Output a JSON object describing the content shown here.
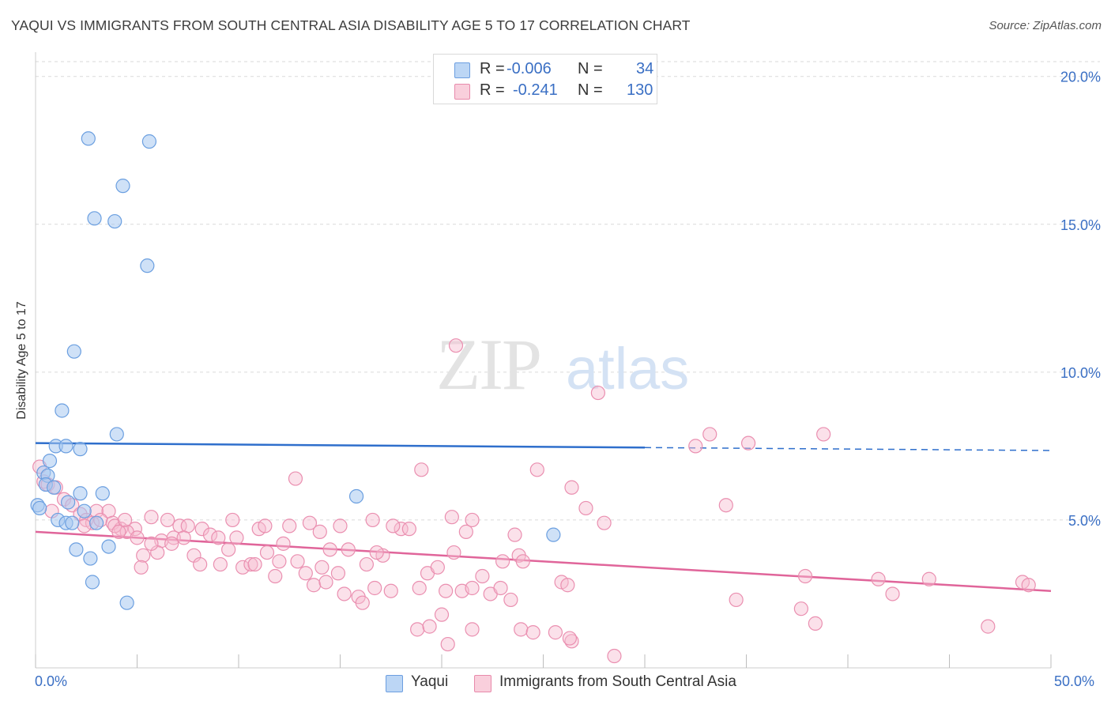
{
  "header": {
    "title": "YAQUI VS IMMIGRANTS FROM SOUTH CENTRAL ASIA DISABILITY AGE 5 TO 17 CORRELATION CHART",
    "source": "Source: ZipAtlas.com"
  },
  "watermark": {
    "zip": "ZIP",
    "atlas": "atlas"
  },
  "legend": {
    "rows": [
      {
        "r_label": "R =",
        "r_value": "-0.006",
        "n_label": "N =",
        "n_value": "34",
        "color": "#a9c8f0",
        "border": "#6c9ee0"
      },
      {
        "r_label": "R =",
        "r_value": "-0.241",
        "n_label": "N =",
        "n_value": "130",
        "color": "#f7bcd0",
        "border": "#e88aab"
      }
    ]
  },
  "bottom_legend": {
    "yaqui": "Yaqui",
    "immigrants": "Immigrants from South Central Asia"
  },
  "colors": {
    "yaqui_fill": "rgba(168,200,240,0.55)",
    "yaqui_stroke": "#6b9fe0",
    "yaqui_line": "#2f6fcc",
    "imm_fill": "rgba(247,188,208,0.45)",
    "imm_stroke": "#ea8fb0",
    "imm_line": "#e0659a",
    "grid": "#dadada",
    "tick_text": "#3a6fc4"
  },
  "chart_data": {
    "type": "scatter",
    "title": "YAQUI VS IMMIGRANTS FROM SOUTH CENTRAL ASIA DISABILITY AGE 5 TO 17 CORRELATION CHART",
    "xlabel": "",
    "ylabel": "Disability Age 5 to 17",
    "xlim": [
      0,
      50
    ],
    "ylim": [
      0,
      20.5
    ],
    "x_tick_labels": [
      "0.0%",
      "50.0%"
    ],
    "y_ticks": [
      5,
      10,
      15,
      20
    ],
    "y_tick_labels": [
      "5.0%",
      "10.0%",
      "15.0%",
      "20.0%"
    ],
    "grid": "horizontal dashed",
    "series": [
      {
        "name": "Yaqui",
        "R": -0.006,
        "N": 34,
        "trend": {
          "x0": 0,
          "y0": 7.6,
          "x1": 30,
          "y1": 7.45,
          "dashed_to": 50,
          "dashed_y": 7.35
        },
        "points": [
          [
            2.6,
            17.9
          ],
          [
            5.6,
            17.8
          ],
          [
            4.3,
            16.3
          ],
          [
            2.9,
            15.2
          ],
          [
            3.9,
            15.1
          ],
          [
            5.5,
            13.6
          ],
          [
            1.9,
            10.7
          ],
          [
            1.3,
            8.7
          ],
          [
            4.0,
            7.9
          ],
          [
            1.0,
            7.5
          ],
          [
            1.5,
            7.5
          ],
          [
            2.2,
            7.4
          ],
          [
            0.7,
            7.0
          ],
          [
            0.4,
            6.6
          ],
          [
            0.6,
            6.5
          ],
          [
            0.5,
            6.2
          ],
          [
            0.9,
            6.1
          ],
          [
            2.2,
            5.9
          ],
          [
            3.3,
            5.9
          ],
          [
            15.8,
            5.8
          ],
          [
            1.6,
            5.6
          ],
          [
            0.1,
            5.5
          ],
          [
            0.2,
            5.4
          ],
          [
            2.4,
            5.3
          ],
          [
            1.1,
            5.0
          ],
          [
            1.5,
            4.9
          ],
          [
            1.8,
            4.9
          ],
          [
            3.0,
            4.9
          ],
          [
            25.5,
            4.5
          ],
          [
            3.6,
            4.1
          ],
          [
            2.0,
            4.0
          ],
          [
            2.7,
            3.7
          ],
          [
            2.8,
            2.9
          ],
          [
            4.5,
            2.2
          ]
        ]
      },
      {
        "name": "Immigrants from South Central Asia",
        "R": -0.241,
        "N": 130,
        "trend": {
          "x0": 0,
          "y0": 4.6,
          "x1": 50,
          "y1": 2.6
        },
        "points": [
          [
            20.7,
            10.9
          ],
          [
            27.7,
            9.3
          ],
          [
            33.2,
            7.9
          ],
          [
            38.8,
            7.9
          ],
          [
            32.5,
            7.5
          ],
          [
            35.1,
            7.6
          ],
          [
            19.0,
            6.7
          ],
          [
            24.7,
            6.7
          ],
          [
            12.8,
            6.4
          ],
          [
            0.2,
            6.8
          ],
          [
            0.4,
            6.3
          ],
          [
            0.6,
            6.2
          ],
          [
            1.0,
            6.1
          ],
          [
            1.4,
            5.7
          ],
          [
            1.8,
            5.5
          ],
          [
            0.8,
            5.3
          ],
          [
            2.2,
            5.2
          ],
          [
            3.0,
            5.3
          ],
          [
            3.6,
            5.3
          ],
          [
            2.5,
            5.0
          ],
          [
            2.8,
            4.9
          ],
          [
            3.2,
            5.0
          ],
          [
            3.8,
            4.9
          ],
          [
            4.2,
            4.7
          ],
          [
            4.9,
            4.7
          ],
          [
            5.7,
            5.1
          ],
          [
            6.5,
            5.0
          ],
          [
            7.1,
            4.8
          ],
          [
            7.5,
            4.8
          ],
          [
            6.2,
            4.3
          ],
          [
            4.5,
            4.6
          ],
          [
            5.0,
            4.4
          ],
          [
            5.3,
            3.8
          ],
          [
            5.2,
            3.4
          ],
          [
            6.0,
            3.9
          ],
          [
            6.8,
            4.4
          ],
          [
            7.3,
            4.4
          ],
          [
            7.8,
            3.8
          ],
          [
            8.2,
            4.7
          ],
          [
            8.6,
            4.5
          ],
          [
            9.1,
            3.5
          ],
          [
            8.1,
            3.5
          ],
          [
            9.5,
            4.0
          ],
          [
            9.9,
            4.4
          ],
          [
            10.2,
            3.4
          ],
          [
            9.7,
            5.0
          ],
          [
            10.6,
            3.5
          ],
          [
            11.0,
            4.7
          ],
          [
            11.4,
            3.9
          ],
          [
            11.8,
            3.1
          ],
          [
            12.2,
            4.2
          ],
          [
            12.5,
            4.8
          ],
          [
            12.9,
            3.6
          ],
          [
            13.3,
            3.2
          ],
          [
            13.7,
            2.8
          ],
          [
            14.1,
            3.4
          ],
          [
            14.5,
            4.0
          ],
          [
            14.9,
            3.2
          ],
          [
            15.4,
            4.0
          ],
          [
            15.9,
            2.4
          ],
          [
            16.3,
            3.5
          ],
          [
            16.7,
            2.7
          ],
          [
            17.1,
            3.8
          ],
          [
            17.5,
            2.6
          ],
          [
            18.0,
            4.7
          ],
          [
            18.4,
            4.7
          ],
          [
            18.9,
            2.7
          ],
          [
            19.3,
            3.2
          ],
          [
            19.8,
            3.4
          ],
          [
            20.2,
            2.6
          ],
          [
            20.6,
            3.9
          ],
          [
            21.0,
            2.6
          ],
          [
            21.5,
            2.7
          ],
          [
            22.0,
            3.1
          ],
          [
            22.4,
            2.5
          ],
          [
            22.9,
            2.7
          ],
          [
            23.4,
            2.3
          ],
          [
            23.8,
            3.8
          ],
          [
            15.0,
            4.8
          ],
          [
            13.5,
            4.9
          ],
          [
            14.0,
            4.6
          ],
          [
            20.5,
            5.1
          ],
          [
            17.6,
            4.8
          ],
          [
            16.6,
            5.0
          ],
          [
            21.5,
            5.0
          ],
          [
            23.6,
            4.5
          ],
          [
            21.2,
            4.6
          ],
          [
            26.4,
            6.1
          ],
          [
            27.1,
            5.4
          ],
          [
            28.0,
            4.9
          ],
          [
            23.0,
            3.6
          ],
          [
            24.0,
            3.6
          ],
          [
            25.9,
            2.9
          ],
          [
            26.2,
            2.8
          ],
          [
            18.8,
            1.3
          ],
          [
            19.4,
            1.4
          ],
          [
            21.5,
            1.3
          ],
          [
            23.9,
            1.3
          ],
          [
            24.5,
            1.2
          ],
          [
            25.6,
            1.2
          ],
          [
            20.3,
            0.8
          ],
          [
            26.4,
            0.9
          ],
          [
            28.5,
            0.4
          ],
          [
            34.5,
            2.3
          ],
          [
            41.5,
            3.0
          ],
          [
            42.2,
            2.5
          ],
          [
            37.9,
            3.1
          ],
          [
            37.7,
            2.0
          ],
          [
            38.4,
            1.5
          ],
          [
            34.0,
            5.5
          ],
          [
            26.3,
            1.0
          ],
          [
            14.3,
            2.9
          ],
          [
            15.2,
            2.5
          ],
          [
            16.1,
            2.2
          ],
          [
            20.0,
            1.8
          ],
          [
            46.9,
            1.4
          ],
          [
            48.6,
            2.9
          ],
          [
            48.9,
            2.8
          ],
          [
            44.0,
            3.0
          ],
          [
            12.0,
            3.6
          ],
          [
            10.8,
            3.5
          ],
          [
            3.9,
            4.8
          ],
          [
            4.4,
            5.0
          ],
          [
            5.7,
            4.2
          ],
          [
            6.7,
            4.2
          ],
          [
            9.0,
            4.4
          ],
          [
            11.3,
            4.8
          ],
          [
            2.4,
            4.8
          ],
          [
            4.1,
            4.6
          ],
          [
            16.8,
            3.9
          ]
        ]
      }
    ]
  }
}
